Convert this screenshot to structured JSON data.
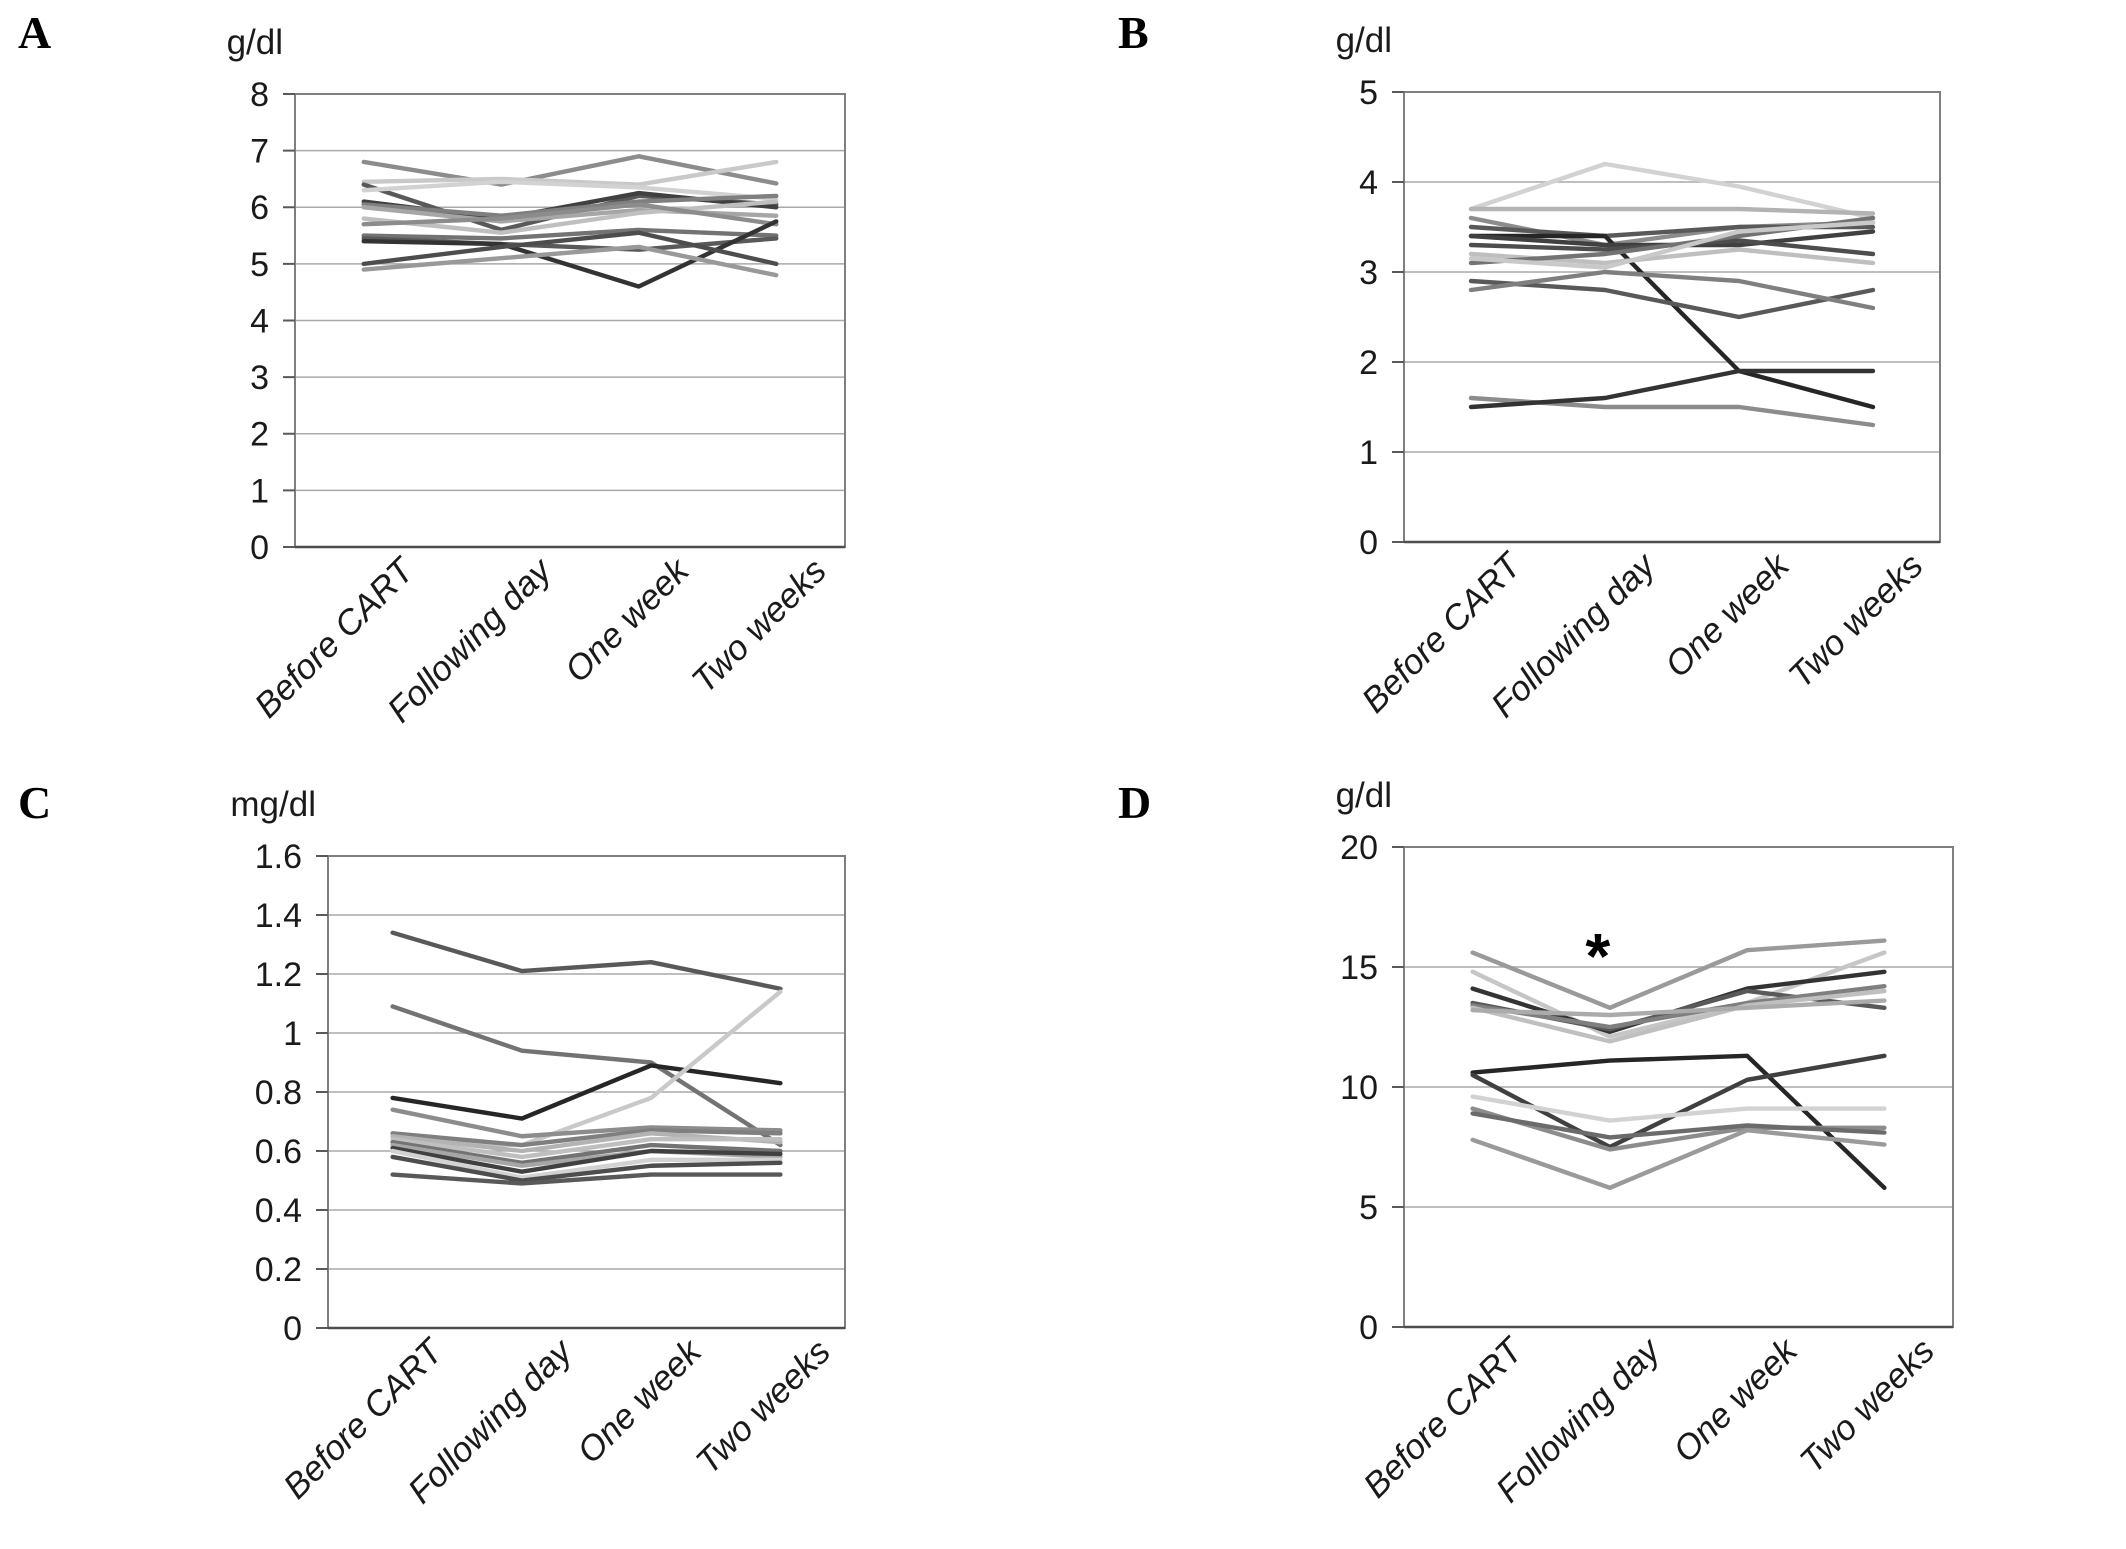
{
  "figure": {
    "background": "#ffffff",
    "panel_letters": [
      "A",
      "B",
      "C",
      "D"
    ]
  },
  "chart_data": [
    {
      "type": "line",
      "panel": "A",
      "unit": "g/dl",
      "categories": [
        "Before CART",
        "Following day",
        "One week",
        "Two weeks"
      ],
      "ylim": [
        0,
        8
      ],
      "yticks": [
        0,
        1,
        2,
        3,
        4,
        5,
        6,
        7,
        8
      ],
      "ytick_labels": [
        "0",
        "1",
        "2",
        "3",
        "4",
        "5",
        "6",
        "7",
        "8"
      ],
      "grid": true,
      "legend": "none",
      "series": [
        {
          "color": "#8c8c8c",
          "values": [
            6.8,
            6.4,
            6.9,
            6.42
          ]
        },
        {
          "color": "#c9c9c9",
          "values": [
            6.45,
            6.5,
            6.4,
            6.8
          ]
        },
        {
          "color": "#595959",
          "values": [
            6.4,
            5.6,
            6.2,
            6.05
          ]
        },
        {
          "color": "#d2d2d2",
          "values": [
            6.3,
            6.45,
            6.35,
            6.15
          ]
        },
        {
          "color": "#404040",
          "values": [
            6.1,
            5.8,
            6.25,
            6.0
          ]
        },
        {
          "color": "#7f7f7f",
          "values": [
            6.05,
            5.85,
            6.1,
            6.2
          ]
        },
        {
          "color": "#a6a6a6",
          "values": [
            6.0,
            5.75,
            5.95,
            5.85
          ]
        },
        {
          "color": "#bfbfbf",
          "values": [
            5.8,
            5.55,
            5.9,
            6.1
          ]
        },
        {
          "color": "#8c8c8c",
          "values": [
            5.7,
            5.8,
            6.05,
            5.7
          ]
        },
        {
          "color": "#737373",
          "values": [
            5.5,
            5.45,
            5.6,
            5.5
          ]
        },
        {
          "color": "#595959",
          "values": [
            5.45,
            5.35,
            5.25,
            5.45
          ]
        },
        {
          "color": "#333333",
          "values": [
            5.4,
            5.35,
            4.6,
            5.75
          ]
        },
        {
          "color": "#4d4d4d",
          "values": [
            5.0,
            5.3,
            5.55,
            5.0
          ]
        },
        {
          "color": "#999999",
          "values": [
            4.9,
            5.1,
            5.3,
            4.8
          ]
        }
      ]
    },
    {
      "type": "line",
      "panel": "B",
      "unit": "g/dl",
      "categories": [
        "Before CART",
        "Following day",
        "One week",
        "Two weeks"
      ],
      "ylim": [
        0,
        5
      ],
      "yticks": [
        0,
        1,
        2,
        3,
        4,
        5
      ],
      "ytick_labels": [
        "0",
        "1",
        "2",
        "3",
        "4",
        "5"
      ],
      "grid": true,
      "legend": "none",
      "series": [
        {
          "color": "#d2d2d2",
          "values": [
            3.7,
            4.2,
            3.95,
            3.6
          ]
        },
        {
          "color": "#b3b3b3",
          "values": [
            3.7,
            3.7,
            3.7,
            3.65
          ]
        },
        {
          "color": "#8c8c8c",
          "values": [
            3.6,
            3.3,
            3.5,
            3.55
          ]
        },
        {
          "color": "#595959",
          "values": [
            3.5,
            3.4,
            3.5,
            3.5
          ]
        },
        {
          "color": "#262626",
          "values": [
            3.4,
            3.4,
            1.9,
            1.5
          ]
        },
        {
          "color": "#404040",
          "values": [
            3.4,
            3.3,
            3.3,
            3.45
          ]
        },
        {
          "color": "#4d4d4d",
          "values": [
            3.3,
            3.25,
            3.35,
            3.2
          ]
        },
        {
          "color": "#bfbfbf",
          "values": [
            3.2,
            3.1,
            3.25,
            3.1
          ]
        },
        {
          "color": "#737373",
          "values": [
            3.1,
            3.2,
            3.4,
            3.6
          ]
        },
        {
          "color": "#c9c9c9",
          "values": [
            3.15,
            3.05,
            3.45,
            3.55
          ]
        },
        {
          "color": "#595959",
          "values": [
            2.9,
            2.8,
            2.5,
            2.8
          ]
        },
        {
          "color": "#7f7f7f",
          "values": [
            2.8,
            3.0,
            2.9,
            2.6
          ]
        },
        {
          "color": "#8c8c8c",
          "values": [
            1.6,
            1.5,
            1.5,
            1.3
          ]
        },
        {
          "color": "#333333",
          "values": [
            1.5,
            1.6,
            1.9,
            1.9
          ]
        }
      ]
    },
    {
      "type": "line",
      "panel": "C",
      "unit": "mg/dl",
      "categories": [
        "Before CART",
        "Following day",
        "One week",
        "Two weeks"
      ],
      "ylim": [
        0,
        1.6
      ],
      "yticks": [
        0,
        0.2,
        0.4,
        0.6,
        0.8,
        1.0,
        1.2,
        1.4,
        1.6
      ],
      "ytick_labels": [
        "0",
        "0.2",
        "0.4",
        "0.6",
        "0.8",
        "1",
        "1.2",
        "1.4",
        "1.6"
      ],
      "grid": true,
      "legend": "none",
      "series": [
        {
          "color": "#595959",
          "values": [
            1.34,
            1.21,
            1.24,
            1.15
          ]
        },
        {
          "color": "#737373",
          "values": [
            1.09,
            0.94,
            0.9,
            0.62
          ]
        },
        {
          "color": "#262626",
          "values": [
            0.78,
            0.71,
            0.89,
            0.83
          ]
        },
        {
          "color": "#c9c9c9",
          "values": [
            0.63,
            0.62,
            0.78,
            1.14
          ]
        },
        {
          "color": "#8c8c8c",
          "values": [
            0.74,
            0.65,
            0.68,
            0.67
          ]
        },
        {
          "color": "#7f7f7f",
          "values": [
            0.66,
            0.62,
            0.67,
            0.66
          ]
        },
        {
          "color": "#b3b3b3",
          "values": [
            0.65,
            0.6,
            0.66,
            0.63
          ]
        },
        {
          "color": "#bfbfbf",
          "values": [
            0.64,
            0.58,
            0.64,
            0.64
          ]
        },
        {
          "color": "#737373",
          "values": [
            0.63,
            0.56,
            0.62,
            0.6
          ]
        },
        {
          "color": "#a6a6a6",
          "values": [
            0.62,
            0.55,
            0.6,
            0.58
          ]
        },
        {
          "color": "#404040",
          "values": [
            0.61,
            0.53,
            0.6,
            0.59
          ]
        },
        {
          "color": "#d2d2d2",
          "values": [
            0.6,
            0.51,
            0.57,
            0.57
          ]
        },
        {
          "color": "#4d4d4d",
          "values": [
            0.58,
            0.5,
            0.55,
            0.56
          ]
        },
        {
          "color": "#595959",
          "values": [
            0.52,
            0.49,
            0.52,
            0.52
          ]
        }
      ]
    },
    {
      "type": "line",
      "panel": "D",
      "unit": "g/dl",
      "categories": [
        "Before CART",
        "Following day",
        "One week",
        "Two weeks"
      ],
      "ylim": [
        0,
        20
      ],
      "yticks": [
        0,
        5,
        10,
        15,
        20
      ],
      "ytick_labels": [
        "0",
        "5",
        "10",
        "15",
        "20"
      ],
      "grid": true,
      "legend": "none",
      "annotation": {
        "text": "*",
        "category_index": 1,
        "value": 16
      },
      "series": [
        {
          "color": "#9a9a9a",
          "values": [
            15.6,
            13.3,
            15.7,
            16.1
          ]
        },
        {
          "color": "#c6c6c6",
          "values": [
            14.8,
            12.1,
            13.5,
            15.6
          ]
        },
        {
          "color": "#333333",
          "values": [
            14.1,
            12.3,
            14.1,
            14.8
          ]
        },
        {
          "color": "#595959",
          "values": [
            13.5,
            12.4,
            14.0,
            13.3
          ]
        },
        {
          "color": "#7f7f7f",
          "values": [
            13.4,
            12.5,
            13.5,
            14.2
          ]
        },
        {
          "color": "#bfbfbf",
          "values": [
            13.3,
            11.9,
            13.4,
            14.0
          ]
        },
        {
          "color": "#ababab",
          "values": [
            13.2,
            13.0,
            13.3,
            13.6
          ]
        },
        {
          "color": "#262626",
          "values": [
            10.6,
            11.1,
            11.3,
            5.8
          ]
        },
        {
          "color": "#404040",
          "values": [
            10.5,
            7.5,
            10.3,
            11.3
          ]
        },
        {
          "color": "#d2d2d2",
          "values": [
            9.6,
            8.6,
            9.1,
            9.1
          ]
        },
        {
          "color": "#8c8c8c",
          "values": [
            9.1,
            7.4,
            8.3,
            8.3
          ]
        },
        {
          "color": "#6b6b6b",
          "values": [
            8.9,
            7.9,
            8.4,
            8.1
          ]
        },
        {
          "color": "#9a9a9a",
          "values": [
            7.8,
            5.8,
            8.2,
            7.6
          ]
        }
      ]
    }
  ]
}
